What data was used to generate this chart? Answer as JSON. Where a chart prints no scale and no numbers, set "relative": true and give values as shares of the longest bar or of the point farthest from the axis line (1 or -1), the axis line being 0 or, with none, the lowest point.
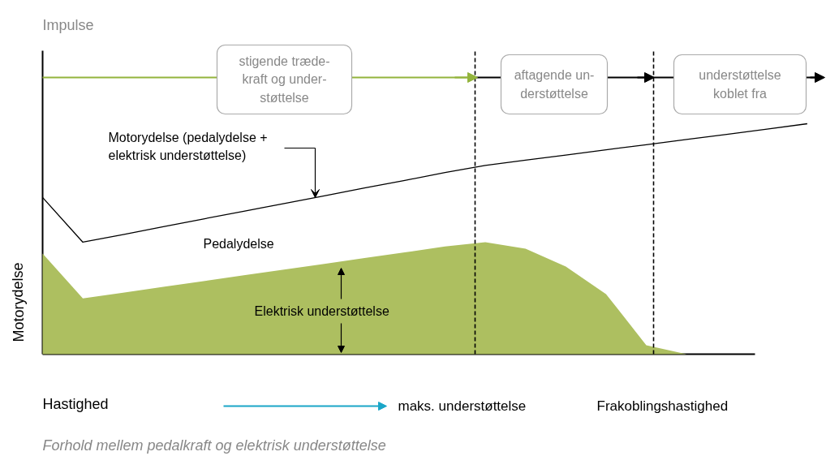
{
  "chart_data": {
    "type": "line",
    "relative": true,
    "title": "Impulse",
    "xlabel": "Hastighed",
    "ylabel": "Motorydelse",
    "categories": [
      null,
      null,
      null,
      null,
      null,
      null,
      null,
      null,
      null,
      null,
      null,
      null,
      null,
      null,
      null,
      null,
      null,
      null,
      null,
      null
    ],
    "series": [
      {
        "type": "area",
        "color": "#adbf60",
        "values": [
          0.437,
          0.242,
          0.267,
          0.292,
          0.317,
          0.342,
          0.367,
          0.392,
          0.417,
          0.442,
          0.467,
          0.486,
          0.458,
          0.38,
          0.261,
          0.039,
          0,
          null,
          null,
          null
        ]
      },
      {
        "color": "#000000",
        "values": [
          0.68,
          0.486,
          0.519,
          0.553,
          0.587,
          0.62,
          0.654,
          0.687,
          0.721,
          0.754,
          0.788,
          0.819,
          0.842,
          0.864,
          0.887,
          0.909,
          0.932,
          0.954,
          0.977,
          1.0
        ]
      }
    ],
    "annotations": [
      "stigende træde-\nkraft og under-\nstøttelse",
      "aftagende un-\nderstøttelse",
      "understøttelse\nkoblet fra",
      "Motorydelse (pedalydelse +\nelektrisk understøttelse)",
      "Pedalydelse",
      "Elektrisk understøttelse",
      "maks. understøttelse",
      "Frakoblingshastighed",
      "Forhold mellem pedalkraft og elektrisk understøttelse"
    ]
  }
}
